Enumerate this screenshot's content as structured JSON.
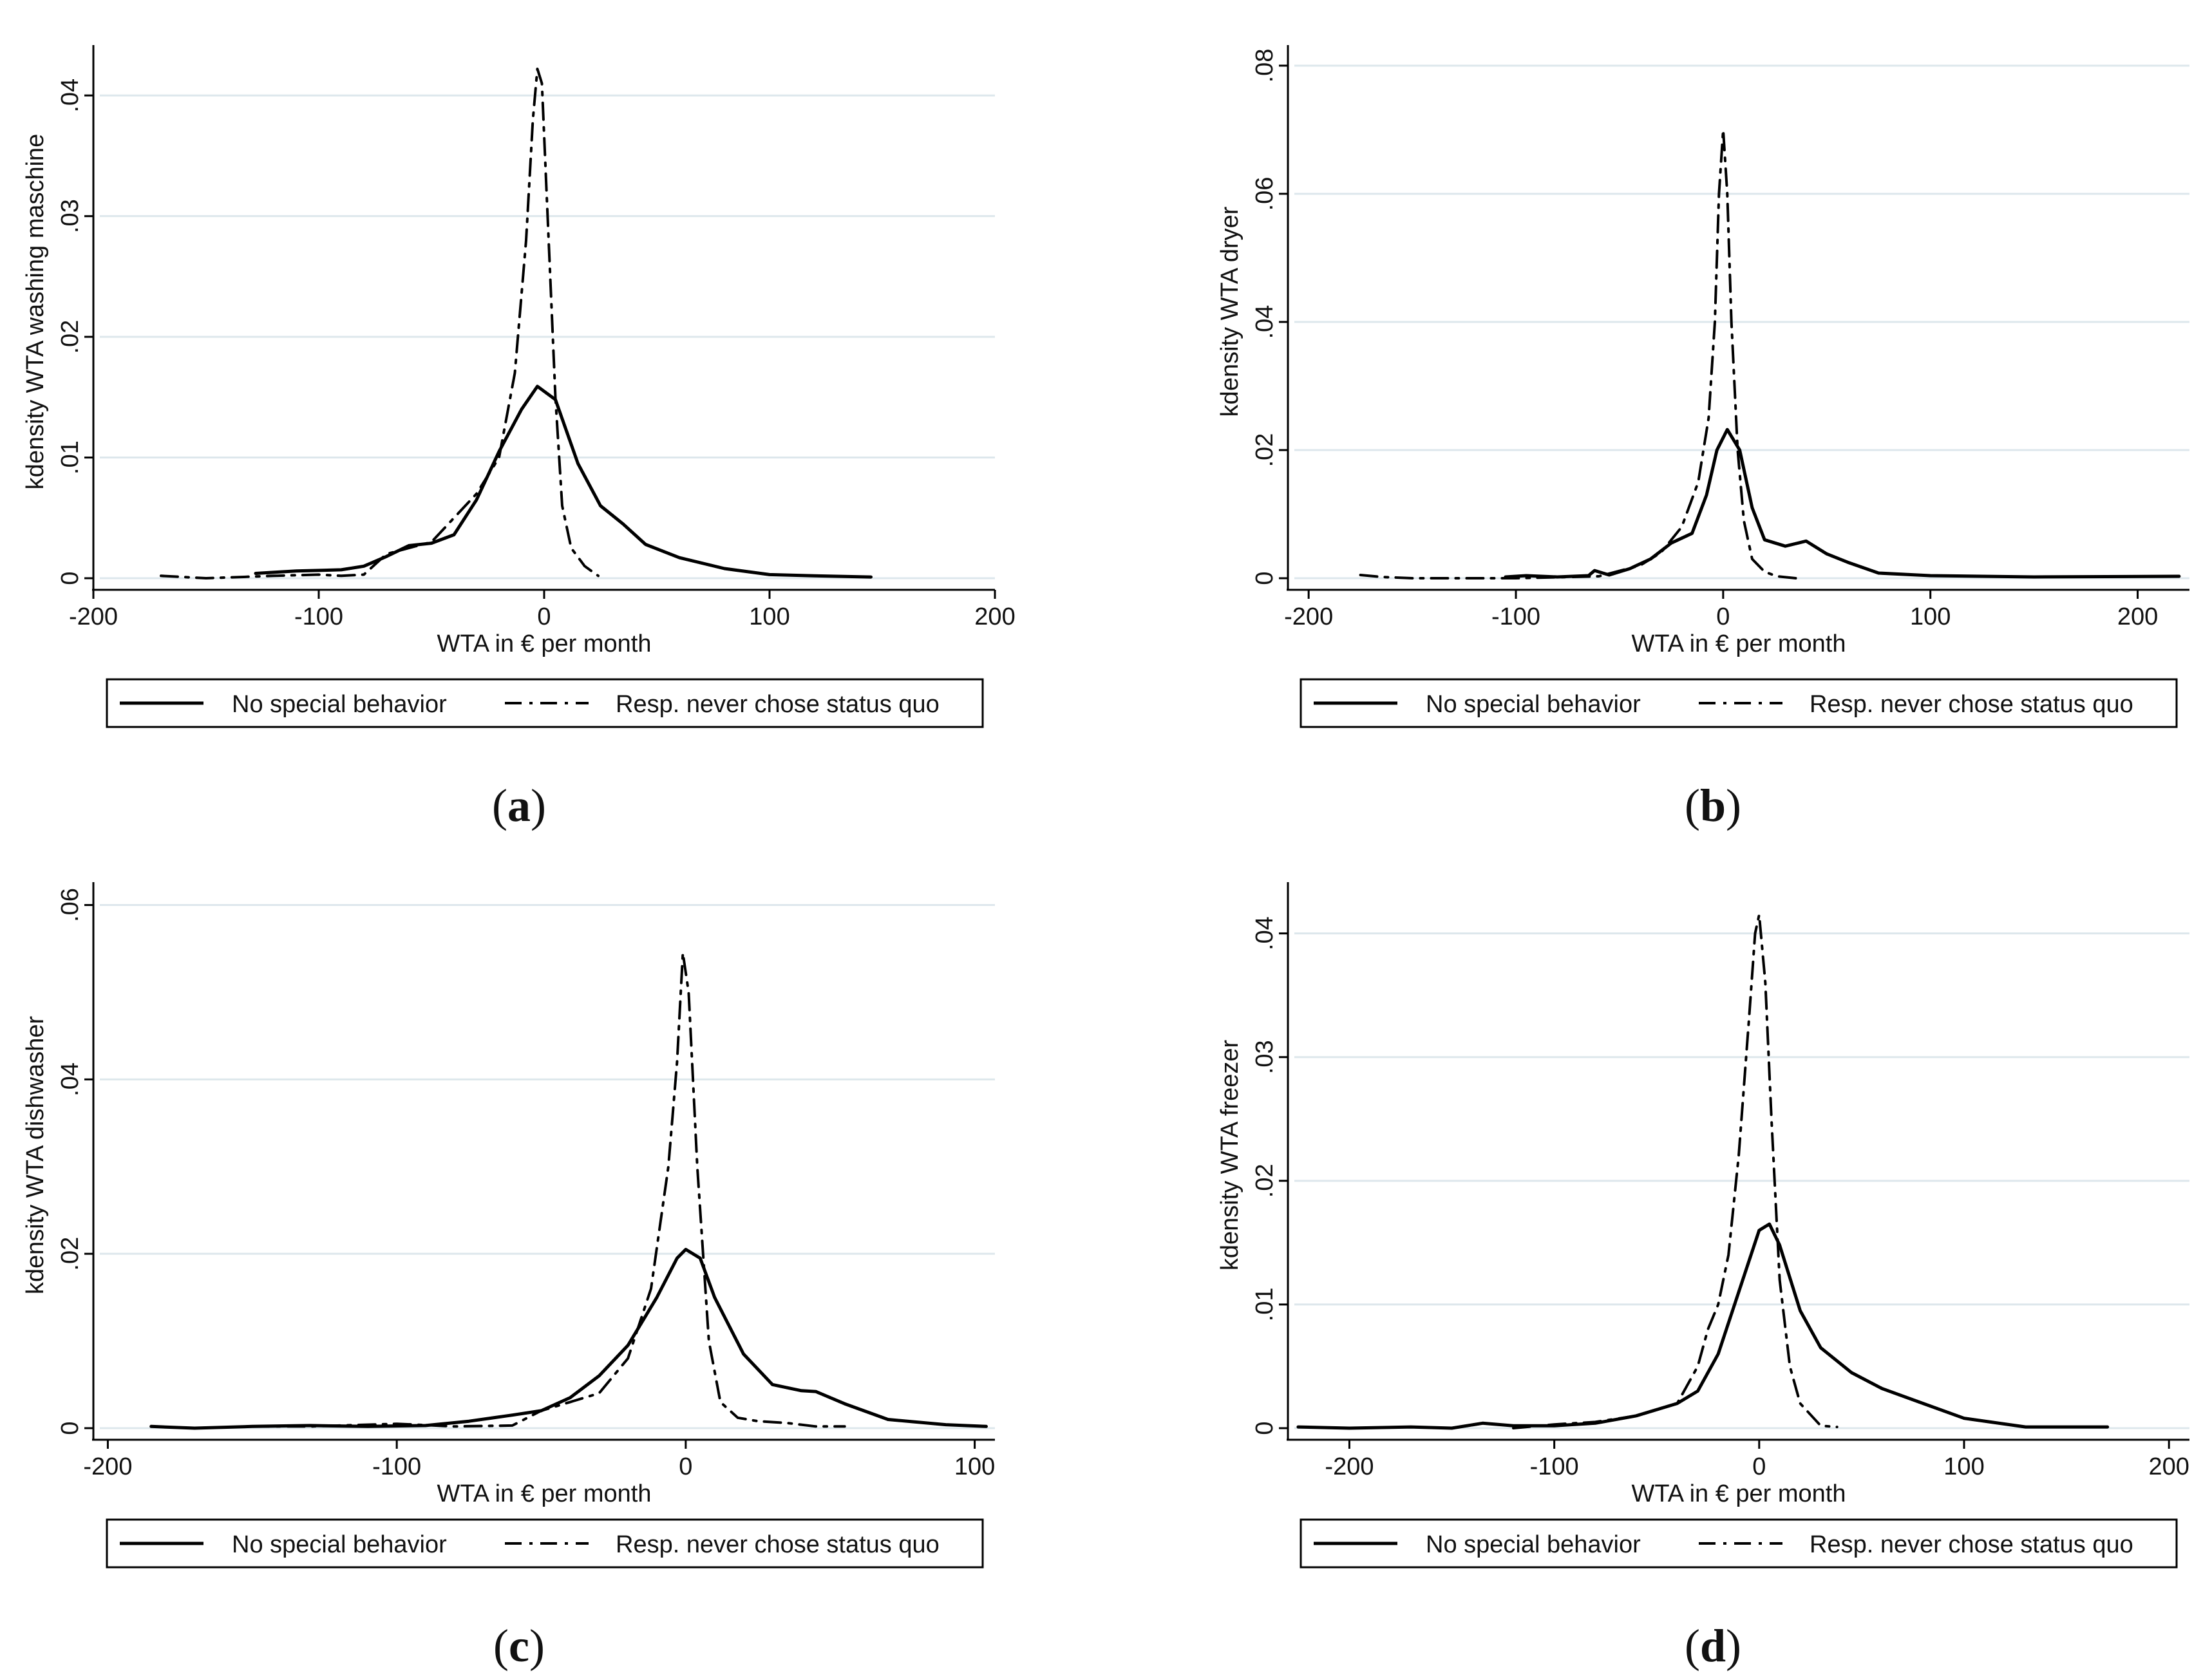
{
  "legend": {
    "solid_label": "No special behavior",
    "dashdot_label": "Resp. never chose status quo"
  },
  "chart_data": [
    {
      "panel": "a",
      "caption": {
        "letter": "a",
        "text": "(a)"
      },
      "type": "line",
      "title": "",
      "xlabel": "WTA in € per month",
      "ylabel": "kdensity WTA washing maschine",
      "xlim": [
        -200,
        200
      ],
      "ylim": [
        0,
        0.043
      ],
      "xticks": [
        -200,
        -100,
        0,
        100,
        200
      ],
      "xticklabels": [
        "-200",
        "-100",
        "0",
        "100",
        "200"
      ],
      "yticks": [
        0,
        0.01,
        0.02,
        0.03,
        0.04
      ],
      "yticklabels": [
        "0",
        ".01",
        ".02",
        ".03",
        ".04"
      ],
      "grid": true,
      "legend_position": "bottom",
      "series": [
        {
          "name": "No special behavior",
          "style": "solid",
          "x": [
            -128,
            -110,
            -90,
            -80,
            -70,
            -60,
            -50,
            -40,
            -30,
            -20,
            -10,
            -3,
            5,
            15,
            25,
            35,
            45,
            60,
            80,
            100,
            120,
            145
          ],
          "y": [
            0.0004,
            0.0006,
            0.0007,
            0.001,
            0.0018,
            0.0027,
            0.0029,
            0.0036,
            0.0065,
            0.0105,
            0.014,
            0.0159,
            0.0148,
            0.0095,
            0.006,
            0.0045,
            0.0028,
            0.0017,
            0.0008,
            0.0003,
            0.0002,
            0.0001
          ]
        },
        {
          "name": "Resp. never chose status quo",
          "style": "dashdot",
          "x": [
            -170,
            -150,
            -120,
            -100,
            -90,
            -80,
            -70,
            -60,
            -50,
            -40,
            -30,
            -20,
            -13,
            -8,
            -5,
            -3,
            -1,
            2,
            5,
            8,
            12,
            18,
            24
          ],
          "y": [
            0.0002,
            0.0,
            0.0002,
            0.0003,
            0.0002,
            0.0003,
            0.002,
            0.0025,
            0.003,
            0.005,
            0.007,
            0.01,
            0.017,
            0.028,
            0.038,
            0.0422,
            0.041,
            0.028,
            0.015,
            0.006,
            0.0025,
            0.001,
            0.0002
          ]
        }
      ]
    },
    {
      "panel": "b",
      "caption": {
        "letter": "b",
        "text": "(b)"
      },
      "type": "line",
      "title": "",
      "xlabel": "WTA in € per month",
      "ylabel": "kdensity WTA dryer",
      "xlim": [
        -210,
        225
      ],
      "ylim": [
        0,
        0.081
      ],
      "xticks": [
        -200,
        -100,
        0,
        100,
        200
      ],
      "xticklabels": [
        "-200",
        "-100",
        "0",
        "100",
        "200"
      ],
      "yticks": [
        0,
        0.02,
        0.04,
        0.06,
        0.08
      ],
      "yticklabels": [
        "0",
        ".02",
        ".04",
        ".06",
        ".08"
      ],
      "grid": true,
      "legend_position": "bottom",
      "series": [
        {
          "name": "No special behavior",
          "style": "solid",
          "x": [
            -105,
            -95,
            -80,
            -65,
            -62,
            -55,
            -45,
            -35,
            -25,
            -15,
            -8,
            -3,
            2,
            8,
            14,
            20,
            30,
            40,
            50,
            60,
            75,
            100,
            150,
            220
          ],
          "y": [
            0.0002,
            0.0004,
            0.0002,
            0.0004,
            0.0012,
            0.0005,
            0.0015,
            0.003,
            0.0055,
            0.007,
            0.013,
            0.02,
            0.0232,
            0.02,
            0.011,
            0.006,
            0.005,
            0.0058,
            0.0038,
            0.0025,
            0.0008,
            0.0004,
            0.0002,
            0.0003
          ]
        },
        {
          "name": "Resp. never chose status quo",
          "style": "dashdot",
          "x": [
            -175,
            -165,
            -150,
            -100,
            -60,
            -40,
            -30,
            -20,
            -12,
            -7,
            -4,
            -2,
            0,
            2,
            4,
            7,
            10,
            14,
            20,
            26,
            35
          ],
          "y": [
            0.0005,
            0.0002,
            0.0,
            0.0,
            0.0003,
            0.002,
            0.004,
            0.008,
            0.015,
            0.025,
            0.04,
            0.06,
            0.07,
            0.06,
            0.04,
            0.02,
            0.009,
            0.003,
            0.001,
            0.0003,
            0.0
          ]
        }
      ]
    },
    {
      "panel": "c",
      "caption": {
        "letter": "c",
        "text": "(c)"
      },
      "type": "line",
      "title": "",
      "xlabel": "WTA in € per month",
      "ylabel": "kdensity WTA dishwasher",
      "xlim": [
        -205,
        107
      ],
      "ylim": [
        0,
        0.061
      ],
      "xticks": [
        -200,
        -100,
        0,
        100
      ],
      "xticklabels": [
        "-200",
        "-100",
        "0",
        "100"
      ],
      "yticks": [
        0,
        0.02,
        0.04,
        0.06
      ],
      "yticklabels": [
        "0",
        ".02",
        ".04",
        ".06"
      ],
      "grid": true,
      "legend_position": "bottom",
      "series": [
        {
          "name": "No special behavior",
          "style": "solid",
          "x": [
            -185,
            -170,
            -150,
            -130,
            -110,
            -90,
            -75,
            -60,
            -50,
            -40,
            -30,
            -20,
            -10,
            -3,
            0,
            5,
            10,
            20,
            30,
            40,
            45,
            55,
            70,
            90,
            104
          ],
          "y": [
            0.0002,
            0.0,
            0.0002,
            0.0003,
            0.0002,
            0.0003,
            0.0008,
            0.0015,
            0.002,
            0.0035,
            0.006,
            0.0095,
            0.015,
            0.0195,
            0.0205,
            0.0195,
            0.015,
            0.0085,
            0.005,
            0.0043,
            0.0042,
            0.0028,
            0.001,
            0.0004,
            0.0002
          ]
        },
        {
          "name": "Resp. never chose status quo",
          "style": "dashdot",
          "x": [
            -150,
            -130,
            -100,
            -80,
            -60,
            -50,
            -40,
            -30,
            -20,
            -12,
            -6,
            -3,
            -1,
            1,
            4,
            8,
            12,
            18,
            25,
            35,
            45,
            55
          ],
          "y": [
            0.0002,
            0.0002,
            0.0005,
            0.0002,
            0.0003,
            0.002,
            0.003,
            0.004,
            0.008,
            0.016,
            0.03,
            0.042,
            0.0545,
            0.05,
            0.03,
            0.01,
            0.003,
            0.0012,
            0.0008,
            0.0006,
            0.0002,
            0.0002
          ]
        }
      ]
    },
    {
      "panel": "d",
      "caption": {
        "letter": "d",
        "text": "(d)"
      },
      "type": "line",
      "title": "",
      "xlabel": "WTA in € per month",
      "ylabel": "kdensity WTA freezer",
      "xlim": [
        -230,
        210
      ],
      "ylim": [
        0,
        0.043
      ],
      "xticks": [
        -200,
        -100,
        0,
        100,
        200
      ],
      "xticklabels": [
        "-200",
        "-100",
        "0",
        "100",
        "200"
      ],
      "yticks": [
        0,
        0.01,
        0.02,
        0.03,
        0.04
      ],
      "yticklabels": [
        "0",
        ".01",
        ".02",
        ".03",
        ".04"
      ],
      "grid": true,
      "legend_position": "bottom",
      "series": [
        {
          "name": "No special behavior",
          "style": "solid",
          "x": [
            -225,
            -200,
            -170,
            -150,
            -135,
            -120,
            -100,
            -80,
            -60,
            -40,
            -30,
            -20,
            -10,
            0,
            5,
            10,
            20,
            30,
            45,
            60,
            80,
            100,
            130,
            170
          ],
          "y": [
            0.0001,
            0.0,
            0.0001,
            0.0,
            0.0004,
            0.0002,
            0.0002,
            0.0004,
            0.001,
            0.002,
            0.003,
            0.006,
            0.011,
            0.016,
            0.0165,
            0.0148,
            0.0095,
            0.0065,
            0.0045,
            0.0032,
            0.002,
            0.0008,
            0.0001,
            0.0001
          ]
        },
        {
          "name": "Resp. never chose status quo",
          "style": "dashdot",
          "x": [
            -120,
            -100,
            -80,
            -60,
            -40,
            -30,
            -25,
            -20,
            -15,
            -10,
            -5,
            -2,
            0,
            3,
            6,
            10,
            15,
            20,
            30,
            38
          ],
          "y": [
            0.0,
            0.0003,
            0.0005,
            0.001,
            0.002,
            0.005,
            0.008,
            0.01,
            0.014,
            0.022,
            0.033,
            0.04,
            0.0415,
            0.036,
            0.025,
            0.012,
            0.005,
            0.002,
            0.0002,
            0.0001
          ]
        }
      ]
    }
  ]
}
